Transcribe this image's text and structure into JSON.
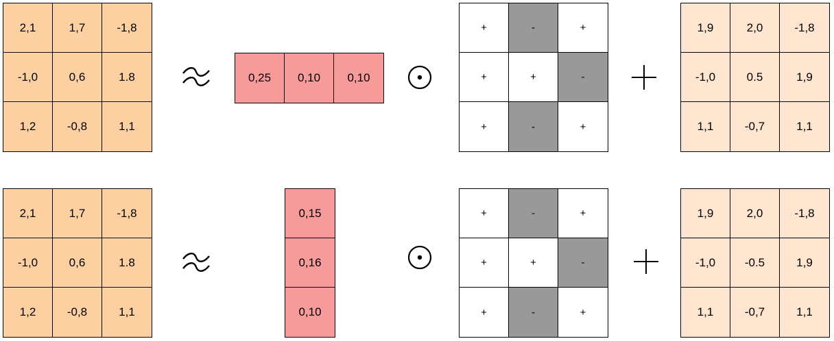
{
  "rows": [
    {
      "left": [
        "2,1",
        "1,7",
        "-1,8",
        "-1,0",
        "0,6",
        "1.8",
        "1,2",
        "-0,8",
        "1,1"
      ],
      "scale_orientation": "horizontal",
      "scale": [
        "0,25",
        "0,10",
        "0,10"
      ],
      "signs": [
        "+",
        "-",
        "+",
        "+",
        "+",
        "-",
        "+",
        "-",
        "+"
      ],
      "right": [
        "1,9",
        "2,0",
        "-1,8",
        "-1,0",
        "0.5",
        "1,9",
        "1,1",
        "-0,7",
        "1,1"
      ]
    },
    {
      "left": [
        "2,1",
        "1,7",
        "-1,8",
        "-1,0",
        "0,6",
        "1.8",
        "1,2",
        "-0,8",
        "1,1"
      ],
      "scale_orientation": "vertical",
      "scale": [
        "0,15",
        "0,16",
        "0,10"
      ],
      "signs": [
        "+",
        "-",
        "+",
        "+",
        "+",
        "-",
        "+",
        "-",
        "+"
      ],
      "right": [
        "1,9",
        "2,0",
        "-1,8",
        "-1,0",
        "-0.5",
        "1,9",
        "1,1",
        "-0,7",
        "1,1"
      ]
    }
  ],
  "colors": {
    "left_matrix": "#fdd0a2",
    "scale_vector": "#f79a9a",
    "sign_negative": "#999999",
    "sign_positive": "#ffffff",
    "right_matrix": "#fde5cf"
  },
  "symbols": {
    "approx": "≈",
    "hadamard": "⊙",
    "plus": "+"
  }
}
